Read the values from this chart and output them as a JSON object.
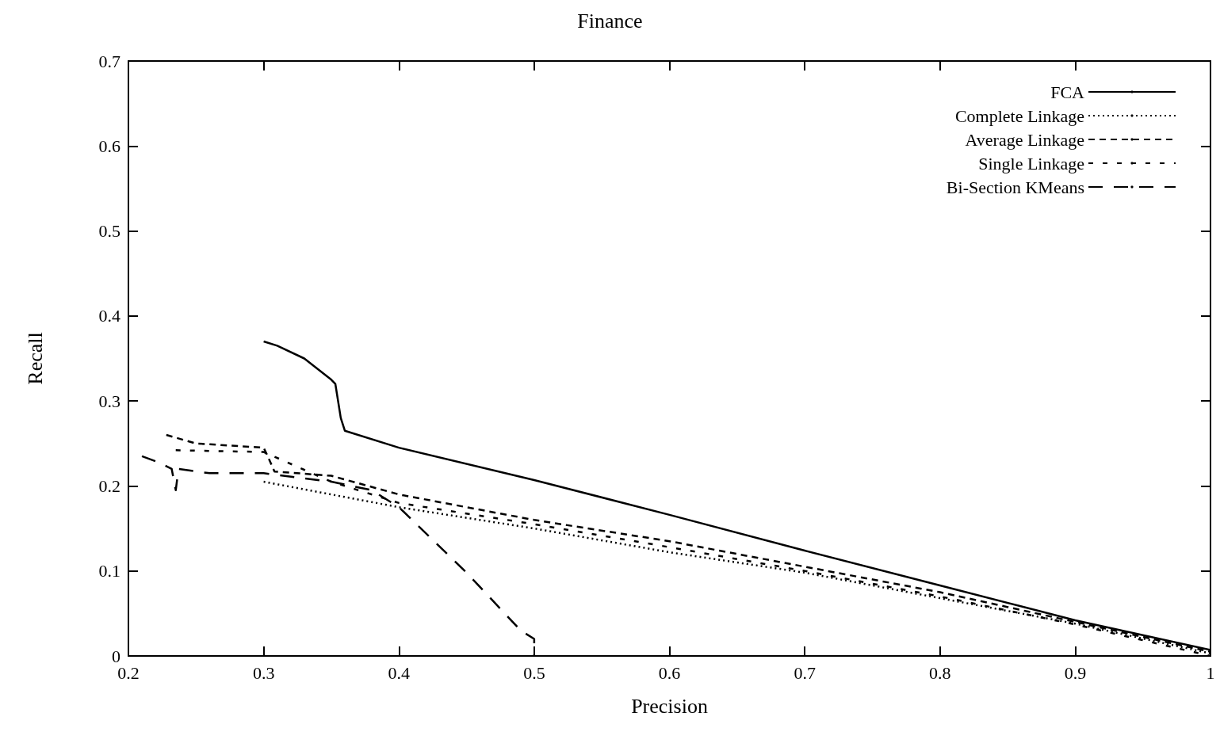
{
  "chart_data": {
    "type": "line",
    "title": "Finance",
    "xlabel": "Precision",
    "ylabel": "Recall",
    "xlim": [
      0.2,
      1
    ],
    "xticks": [
      0.2,
      0.3,
      0.4,
      0.5,
      0.6,
      0.7,
      0.8,
      0.9,
      1
    ],
    "ylim": [
      0,
      0.7
    ],
    "yticks": [
      0,
      0.1,
      0.2,
      0.3,
      0.4,
      0.5,
      0.6,
      0.7
    ],
    "grid": false,
    "legend": "top right",
    "marker": "none",
    "series": [
      {
        "name": "FCA",
        "color": "#000000",
        "line_style": "solid",
        "x": [
          0.3,
          0.31,
          0.33,
          0.35,
          0.353,
          0.357,
          0.36,
          0.4,
          0.5,
          0.6,
          0.7,
          0.8,
          0.9,
          1.0
        ],
        "values": [
          0.37,
          0.365,
          0.35,
          0.325,
          0.32,
          0.28,
          0.265,
          0.245,
          0.207,
          0.166,
          0.124,
          0.083,
          0.042,
          0.007
        ]
      },
      {
        "name": "Complete Linkage",
        "color": "#000000",
        "line_style": "dotted",
        "x": [
          0.3,
          0.35,
          0.4,
          0.5,
          0.6,
          0.7,
          0.8,
          0.9,
          1.0
        ],
        "values": [
          0.205,
          0.19,
          0.175,
          0.15,
          0.122,
          0.098,
          0.068,
          0.038,
          0.003
        ]
      },
      {
        "name": "Average Linkage",
        "color": "#000000",
        "line_style": "dashed",
        "x": [
          0.228,
          0.25,
          0.3,
          0.303,
          0.308,
          0.35,
          0.4,
          0.5,
          0.6,
          0.7,
          0.8,
          0.9,
          1.0
        ],
        "values": [
          0.26,
          0.25,
          0.245,
          0.235,
          0.217,
          0.212,
          0.19,
          0.16,
          0.135,
          0.105,
          0.075,
          0.04,
          0.005
        ]
      },
      {
        "name": "Single Linkage",
        "color": "#000000",
        "line_style": "dashed",
        "x": [
          0.235,
          0.3,
          0.35,
          0.4,
          0.5,
          0.6,
          0.7,
          0.8,
          0.9,
          1.0
        ],
        "values": [
          0.242,
          0.24,
          0.205,
          0.18,
          0.155,
          0.128,
          0.1,
          0.07,
          0.037,
          0.0
        ]
      },
      {
        "name": "Bi-Section KMeans",
        "color": "#000000",
        "line_style": "dashed",
        "x": [
          0.21,
          0.222,
          0.232,
          0.235,
          0.237,
          0.26,
          0.3,
          0.35,
          0.38,
          0.4,
          0.45,
          0.49,
          0.5,
          0.5
        ],
        "values": [
          0.235,
          0.228,
          0.22,
          0.195,
          0.22,
          0.215,
          0.215,
          0.205,
          0.195,
          0.175,
          0.098,
          0.03,
          0.02,
          0.0
        ]
      }
    ]
  }
}
